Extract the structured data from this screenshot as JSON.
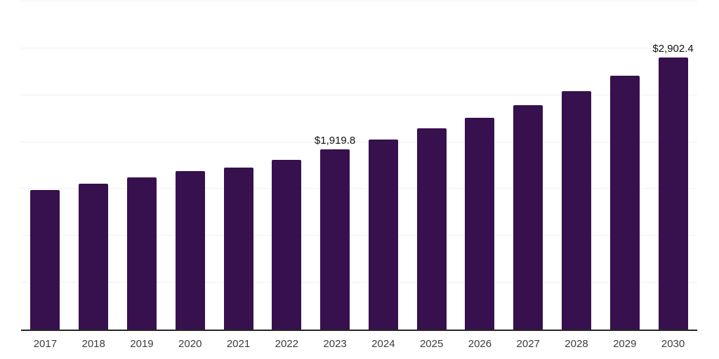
{
  "chart_data": {
    "type": "bar",
    "title": "",
    "xlabel": "",
    "ylabel": "",
    "categories": [
      "2017",
      "2018",
      "2019",
      "2020",
      "2021",
      "2022",
      "2023",
      "2024",
      "2025",
      "2026",
      "2027",
      "2028",
      "2029",
      "2030"
    ],
    "values": [
      1492,
      1552,
      1623,
      1687,
      1731,
      1813,
      1919.8,
      2026,
      2146,
      2261,
      2395,
      2545,
      2705,
      2902.4
    ],
    "data_labels": [
      "",
      "",
      "",
      "",
      "",
      "",
      "$1,919.8",
      "",
      "",
      "",
      "",
      "",
      "",
      "$2,902.4"
    ],
    "ylim": [
      0,
      3500
    ],
    "y_gridlines": [
      500,
      1000,
      1500,
      2000,
      2500,
      3000,
      3500
    ],
    "grid": "horizontal-only",
    "y_tick_labels_shown": false,
    "legend": "none",
    "colors": {
      "background": "#ffffff",
      "bar": "#37104E",
      "gridline": "#f0f0f0",
      "axis_line": "#262626",
      "value_label": "#111111",
      "tick_label": "#3c3c3c"
    }
  }
}
